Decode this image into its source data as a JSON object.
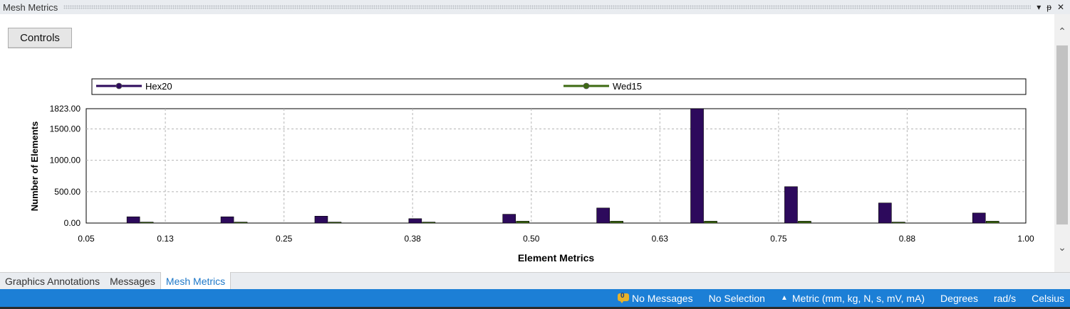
{
  "window": {
    "title": "Mesh Metrics",
    "buttons": {
      "dropdown": "▾",
      "pin": "ᵽ",
      "close": "✕"
    }
  },
  "controls_button": "Controls",
  "colors": {
    "hex20": "#2d0a5c",
    "wed15": "#3d6a12",
    "statusbar": "#1c7fd6"
  },
  "chart_data": {
    "type": "bar",
    "xlabel": "Element Metrics",
    "ylabel": "Number of Elements",
    "xlim": [
      0.05,
      1.0
    ],
    "ylim": [
      0,
      1823
    ],
    "x_ticks": [
      "0.05",
      "0.13",
      "0.25",
      "0.38",
      "0.50",
      "0.63",
      "0.75",
      "0.88",
      "1.00"
    ],
    "y_ticks": [
      "0.00",
      "500.00",
      "1000.00",
      "1500.00",
      "1823.00"
    ],
    "grid": true,
    "legend_position": "top",
    "series": [
      {
        "name": "Hex20",
        "x": [
          0.098,
          0.193,
          0.288,
          0.383,
          0.478,
          0.573,
          0.668,
          0.763,
          0.858,
          0.953
        ],
        "values": [
          100,
          100,
          110,
          70,
          140,
          240,
          1823,
          580,
          320,
          160
        ]
      },
      {
        "name": "Wed15",
        "x": [
          0.098,
          0.193,
          0.288,
          0.383,
          0.478,
          0.573,
          0.668,
          0.763,
          0.858,
          0.953
        ],
        "values": [
          15,
          15,
          15,
          15,
          30,
          30,
          30,
          30,
          15,
          30
        ]
      }
    ]
  },
  "tabs": [
    {
      "label": "Graphics Annotations",
      "active": false
    },
    {
      "label": "Messages",
      "active": false
    },
    {
      "label": "Mesh Metrics",
      "active": true
    }
  ],
  "statusbar": {
    "messages": "No Messages",
    "selection": "No Selection",
    "units": "Metric (mm, kg, N, s, mV, mA)",
    "angle": "Degrees",
    "rotational_velocity": "rad/s",
    "temperature": "Celsius"
  }
}
